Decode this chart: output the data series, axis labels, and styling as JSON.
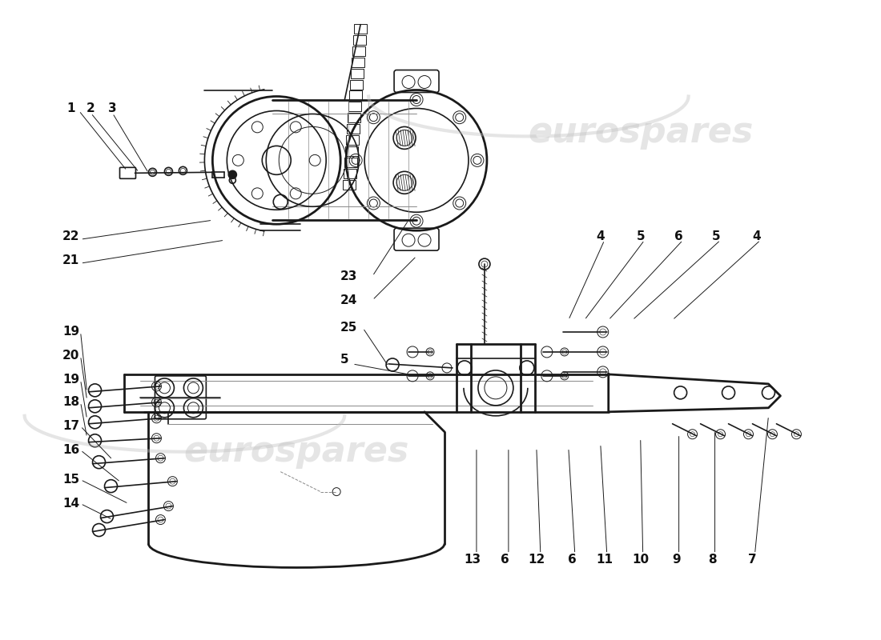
{
  "background_color": "#ffffff",
  "line_color": "#1a1a1a",
  "watermark_text": "eurospares",
  "watermark_color": "#c0c0c0",
  "watermark_alpha": 0.4,
  "fig_width": 11.0,
  "fig_height": 8.0,
  "dpi": 100
}
